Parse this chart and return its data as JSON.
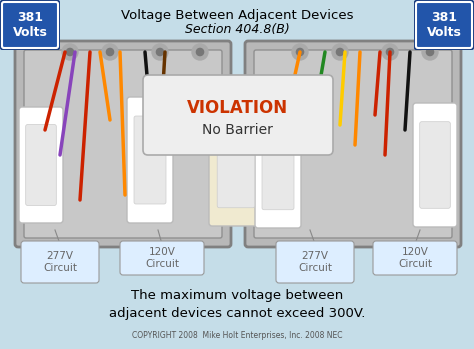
{
  "title_line1": "Voltage Between Adjacent Devices",
  "title_line2": "Section 404.8(B)",
  "voltage_label": "381\nVolts",
  "violation_line1": "VIOLATION",
  "violation_line2": "No Barrier",
  "circuit_labels": [
    "277V\nCircuit",
    "120V\nCircuit",
    "277V\nCircuit",
    "120V\nCircuit"
  ],
  "bottom_text_line1": "The maximum voltage between",
  "bottom_text_line2": "adjacent devices cannot exceed 300V.",
  "copyright_text": "COPYRIGHT 2008  Mike Holt Enterprises, Inc. 2008 NEC",
  "bg_color": "#c5dde8",
  "blue_badge_color": "#2255aa",
  "blue_badge_border": "#1a3d80",
  "junction_box_fill": "#b8b8b8",
  "junction_box_edge": "#808080",
  "inner_fill": "#c8c8c8",
  "switch_fill": "#f5f5f5",
  "switch_edge": "#aaaaaa",
  "violation_fill": "#eeeeee",
  "violation_edge": "#aaaaaa",
  "violation_color": "#cc3300",
  "callout_fill": "#ddeeff",
  "callout_edge": "#999999",
  "callout_text": "#666666",
  "knob_color": "#aaaaaa",
  "knob_inner": "#777777"
}
